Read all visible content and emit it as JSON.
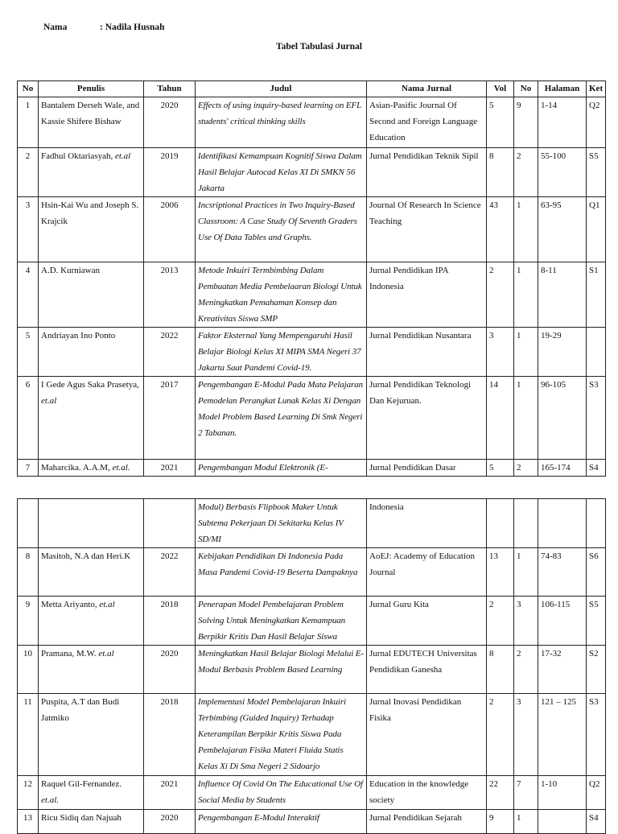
{
  "header": {
    "name_label": "Nama",
    "name_value": ": Nadila Husnah",
    "title": "Tabel Tabulasi Jurnal"
  },
  "columns": [
    "No",
    "Penulis",
    "Tahun",
    "Judul",
    "Nama Jurnal",
    "Vol",
    "No",
    "Halaman",
    "Ket"
  ],
  "rows": [
    {
      "no": "1",
      "author": "Bantalem Derseh Wale, and Kassie Shifere Bishaw",
      "etal": "",
      "year": "2020",
      "title": "Effects of using inquiry-based learning on EFL students' critical thinking skills",
      "journal": "Asian-Pasific Journal Of Second and Foreign Language Education",
      "vol": "5",
      "num": "9",
      "pages": "1-14",
      "ket": "Q2"
    },
    {
      "no": "2",
      "author": "Fadhul Oktariasyah, ",
      "etal": "et.al",
      "year": "2019",
      "title": "Identifikasi Kemampuan Kognitif Siswa Dalam Hasil Belajar Autocad Kelas XI Di SMKN 56 Jakarta",
      "journal": "Jurnal Pendidikan Teknik Sipil",
      "vol": "8",
      "num": "2",
      "pages": "55-100",
      "ket": "S5"
    },
    {
      "no": "3",
      "author": "Hsin-Kai Wu and Joseph S. Krajcik",
      "etal": "",
      "year": "2006",
      "title": "Incsriptional Practices in Two Inquiry-Based Classroom: A Case Study Of Seventh Graders Use Of Data Tables and Graphs.",
      "journal": "Journal Of Research In Science Teaching",
      "vol": "43",
      "num": "1",
      "pages": "63-95",
      "ket": "Q1"
    },
    {
      "no": "4",
      "author": "A.D. Kurniawan",
      "etal": "",
      "year": "2013",
      "title": "Metode Inkuiri Termbimbing Dalam Pembuatan Media Pembelaaran Biologi Untuk Meningkatkan Pemahaman Konsep dan Kreativitas Siswa SMP",
      "journal": "Jurnal Pendidikan IPA Indonesia",
      "vol": "2",
      "num": "1",
      "pages": "8-11",
      "ket": "S1"
    },
    {
      "no": "5",
      "author": "Andriayan Ino Ponto",
      "etal": "",
      "year": "2022",
      "title": "Faktor Eksternal Yang Mempengaruhi Hasil Belajar Biologi Kelas XI MIPA SMA Negeri 37 Jakarta Saat Pandemi Covid-19.",
      "journal": "Jurnal Pendidikan Nusantara",
      "vol": "3",
      "num": "1",
      "pages": "19-29",
      "ket": ""
    },
    {
      "no": "6",
      "author": "I Gede Agus Saka Prasetya, ",
      "etal": "et.al",
      "year": "2017",
      "title": "Pengembangan E-Modul Pada Mata Pelajaran Pemodelan Perangkat Lunak Kelas Xi Dengan Model Problem Based Learning Di Smk Negeri 2 Tabanan.",
      "journal": "Jurnal Pendidikan Teknologi Dan Kejuruan.",
      "vol": "14",
      "num": "1",
      "pages": "96-105",
      "ket": "S3"
    },
    {
      "no": "7",
      "author": "Maharcika. A.A.M, ",
      "etal": "et.al.",
      "year": "2021",
      "title": "Pengembangan Modul Elektronik (E-",
      "journal": "Jurnal Pendidikan Dasar",
      "vol": "5",
      "num": "2",
      "pages": "165-174",
      "ket": "S4"
    }
  ],
  "rows_page2": [
    {
      "no": "",
      "author": "",
      "etal": "",
      "year": "",
      "title": "Modul) Berbasis Flipbook Maker Untuk Subtema Pekerjaan Di Sekitarku Kelas IV SD/MI",
      "journal": "Indonesia",
      "vol": "",
      "num": "",
      "pages": "",
      "ket": ""
    },
    {
      "no": "8",
      "author": "Masitoh, N.A dan Heri.K",
      "etal": "",
      "year": "2022",
      "title": "Kebijakan Pendidikan Di Indonesia Pada Masa Pandemi Covid-19 Beserta Dampaknya",
      "journal": "AoEJ: Academy of Education Journal",
      "vol": "13",
      "num": "1",
      "pages": "74-83",
      "ket": "S6"
    },
    {
      "no": "9",
      "author": "Metta Ariyanto, ",
      "etal": "et.al",
      "year": "2018",
      "title": "Penerapan Model Pembelajaran Problem Solving Untuk Meningkatkan Kemampuan Berpikir Kritis Dan Hasil Belajar Siswa",
      "journal": "Jurnal Guru Kita",
      "vol": "2",
      "num": "3",
      "pages": "106-115",
      "ket": "S5"
    },
    {
      "no": "10",
      "author": "Pramana, M.W. ",
      "etal": "et.al",
      "year": "2020",
      "title": "Meningkatkan Hasil Belajar Biologi Melalui E-Modul Berbasis Problem Based Learning",
      "journal": "Jurnal EDUTECH Universitas Pendidikan Ganesha",
      "vol": "8",
      "num": "2",
      "pages": "17-32",
      "ket": "S2"
    },
    {
      "no": "11",
      "author": "Puspita, A.T dan Budi Jatmiko",
      "etal": "",
      "year": "2018",
      "title": "Implementasi Model Pembelajaran Inkuiri Terbimbing (Guided Inquiry) Terhadap Keterampilan Berpikir Kritis Siswa Pada Pembelajaran Fisika Materi Fluida Statis Kelas Xi Di Sma Negeri 2 Sidoarjo",
      "journal": "Jurnal Inovasi Pendidikan Fisika",
      "vol": "2",
      "num": "3",
      "pages": "121 – 125",
      "ket": "S3"
    },
    {
      "no": "12",
      "author": "Raquel Gil-Fernandez. ",
      "etal": "et.al.",
      "year": "2021",
      "title": "Influence Of Covid On The Educational Use Of Social Media by Students",
      "journal": " Education in the knowledge society",
      "vol": "22",
      "num": "7",
      "pages": "1-10",
      "ket": "Q2"
    },
    {
      "no": "13",
      "author": "Ricu Sidiq dan Najuah",
      "etal": "",
      "year": "2020",
      "title": "Pengembangan E-Modul Interaktif",
      "journal": "Jurnal Pendidikan Sejarah",
      "vol": "9",
      "num": "1",
      "pages": "",
      "ket": "S4"
    }
  ]
}
